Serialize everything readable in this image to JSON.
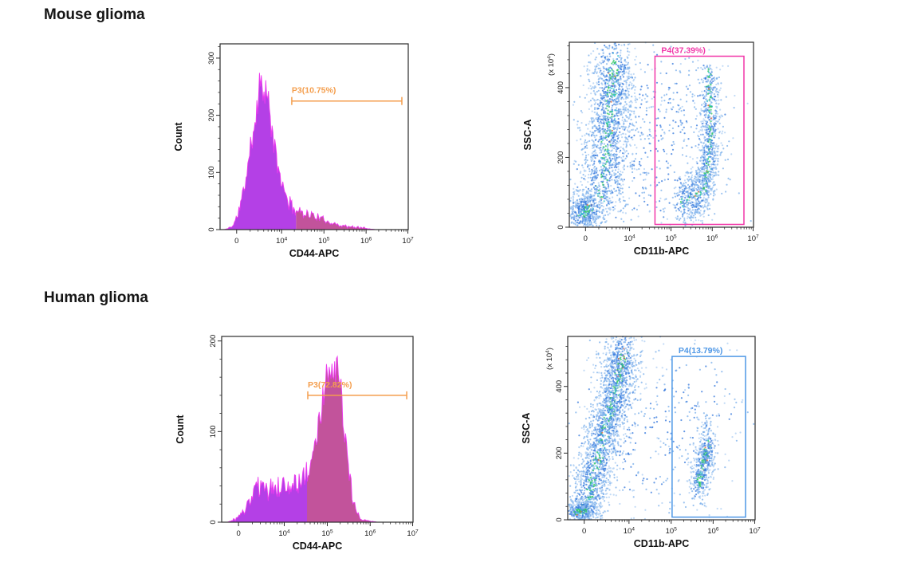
{
  "page": {
    "background": "#FFFFFF"
  },
  "sections": [
    {
      "title": "Mouse glioma"
    },
    {
      "title": "Human glioma"
    }
  ],
  "chart_data": [
    {
      "id": "mouse-cd44-histogram",
      "group": "Mouse glioma",
      "type": "area",
      "subtype": "flow-cytometry-histogram",
      "xlabel": "CD44-APC",
      "ylabel": "Count",
      "x_scale": "logicle",
      "xticks": [
        {
          "t": "0",
          "p": 0.088
        },
        {
          "t": "10",
          "e": "4",
          "p": 0.327
        },
        {
          "t": "10",
          "e": "5",
          "p": 0.552
        },
        {
          "t": "10",
          "e": "6",
          "p": 0.776
        },
        {
          "t": "10",
          "e": "7",
          "p": 0.998
        }
      ],
      "yaxis": {
        "max": 325,
        "majors": [
          0,
          100,
          200,
          300
        ],
        "minor_step": 20
      },
      "colors": {
        "fill": "#B440E6",
        "fill_gated": "#C2539B",
        "edge": "#EC3BEF"
      },
      "gate": {
        "name": "P3",
        "percent": 10.75,
        "label": "P3(10.75%)",
        "x_from": 0.381,
        "x_to": 0.966,
        "at_count": 225,
        "color": "#F49E4D"
      },
      "gate_split_x": 0.404,
      "profile": [
        [
          0.02,
          0
        ],
        [
          0.045,
          2
        ],
        [
          0.07,
          8
        ],
        [
          0.09,
          22
        ],
        [
          0.11,
          45
        ],
        [
          0.13,
          75
        ],
        [
          0.15,
          115
        ],
        [
          0.17,
          160
        ],
        [
          0.19,
          205
        ],
        [
          0.205,
          240
        ],
        [
          0.22,
          265
        ],
        [
          0.23,
          262
        ],
        [
          0.245,
          240
        ],
        [
          0.26,
          210
        ],
        [
          0.275,
          175
        ],
        [
          0.29,
          140
        ],
        [
          0.31,
          105
        ],
        [
          0.33,
          78
        ],
        [
          0.355,
          55
        ],
        [
          0.38,
          40
        ],
        [
          0.41,
          33
        ],
        [
          0.44,
          30
        ],
        [
          0.47,
          27
        ],
        [
          0.5,
          24
        ],
        [
          0.53,
          20
        ],
        [
          0.56,
          16
        ],
        [
          0.59,
          12
        ],
        [
          0.62,
          9
        ],
        [
          0.65,
          7
        ],
        [
          0.68,
          5
        ],
        [
          0.71,
          4
        ],
        [
          0.74,
          4
        ],
        [
          0.77,
          2
        ],
        [
          0.8,
          1
        ],
        [
          0.83,
          0
        ],
        [
          1.0,
          0
        ]
      ]
    },
    {
      "id": "mouse-cd11b-scatter",
      "group": "Mouse glioma",
      "type": "scatter",
      "subtype": "flow-cytometry-dotplot",
      "xlabel": "CD11b-APC",
      "ylabel": "SSC-A",
      "y_unit": {
        "t": "(x 10",
        "e": "4",
        "s": ")"
      },
      "x_scale": "logicle",
      "xticks": [
        {
          "t": "0",
          "p": 0.088
        },
        {
          "t": "10",
          "e": "4",
          "p": 0.327
        },
        {
          "t": "10",
          "e": "5",
          "p": 0.552
        },
        {
          "t": "10",
          "e": "6",
          "p": 0.776
        },
        {
          "t": "10",
          "e": "7",
          "p": 0.998
        }
      ],
      "yaxis": {
        "max": 530,
        "majors": [
          0,
          200,
          400
        ],
        "minor_step": 40
      },
      "gate": {
        "name": "P4",
        "percent": 37.39,
        "label": "P4(37.39%)",
        "x0": 0.465,
        "x1": 0.948,
        "y0": 8,
        "y1": 490,
        "color": "#F136A8"
      },
      "clusters": [
        {
          "path": [
            [
              0.16,
              70
            ],
            [
              0.19,
              170
            ],
            [
              0.21,
              260
            ],
            [
              0.225,
              340
            ],
            [
              0.235,
              420
            ],
            [
              0.24,
              480
            ]
          ],
          "sx": 0.065,
          "sy": 55,
          "n": 1500
        },
        {
          "path": [
            [
              0.06,
              35
            ],
            [
              0.11,
              55
            ]
          ],
          "sx": 0.05,
          "sy": 30,
          "n": 500
        },
        {
          "path": [
            [
              0.755,
              440
            ],
            [
              0.765,
              340
            ],
            [
              0.765,
              250
            ],
            [
              0.755,
              170
            ],
            [
              0.73,
              110
            ],
            [
              0.68,
              85
            ],
            [
              0.6,
              70
            ]
          ],
          "sx": 0.03,
          "sy": 38,
          "n": 1100
        },
        {
          "path": [
            [
              0.12,
              80
            ],
            [
              0.3,
              250
            ],
            [
              0.5,
              150
            ],
            [
              0.45,
              350
            ],
            [
              0.7,
              250
            ]
          ],
          "sx": 0.18,
          "sy": 140,
          "n": 600,
          "loose": true
        }
      ],
      "dot_colors": {
        "core": "#2FC961",
        "core2": "#33C3CE",
        "mid": "#3B7CDE",
        "outer": "#7FB2EC",
        "pale": "#AFD0F4",
        "rare": "#E0643C"
      }
    },
    {
      "id": "human-cd44-histogram",
      "group": "Human glioma",
      "type": "area",
      "subtype": "flow-cytometry-histogram",
      "xlabel": "CD44-APC",
      "ylabel": "Count",
      "x_scale": "logicle",
      "xticks": [
        {
          "t": "0",
          "p": 0.088
        },
        {
          "t": "10",
          "e": "4",
          "p": 0.327
        },
        {
          "t": "10",
          "e": "5",
          "p": 0.552
        },
        {
          "t": "10",
          "e": "6",
          "p": 0.776
        },
        {
          "t": "10",
          "e": "7",
          "p": 0.998
        }
      ],
      "yaxis": {
        "max": 205,
        "majors": [
          0,
          100,
          200
        ],
        "minor_step": 20
      },
      "colors": {
        "fill": "#B440E6",
        "fill_gated": "#C2539B",
        "edge": "#EC3BEF"
      },
      "gate": {
        "name": "P3",
        "percent": 72.82,
        "label": "P3(72.82%)",
        "x_from": 0.45,
        "x_to": 0.967,
        "at_count": 140,
        "color": "#F49E4D"
      },
      "gate_split_x": 0.446,
      "profile": [
        [
          0.03,
          0
        ],
        [
          0.06,
          2
        ],
        [
          0.09,
          6
        ],
        [
          0.12,
          12
        ],
        [
          0.14,
          20
        ],
        [
          0.16,
          28
        ],
        [
          0.18,
          36
        ],
        [
          0.2,
          40
        ],
        [
          0.215,
          34
        ],
        [
          0.23,
          38
        ],
        [
          0.245,
          32
        ],
        [
          0.26,
          38
        ],
        [
          0.275,
          34
        ],
        [
          0.29,
          40
        ],
        [
          0.305,
          35
        ],
        [
          0.32,
          41
        ],
        [
          0.335,
          36
        ],
        [
          0.35,
          42
        ],
        [
          0.365,
          38
        ],
        [
          0.38,
          41
        ],
        [
          0.4,
          44
        ],
        [
          0.42,
          47
        ],
        [
          0.44,
          52
        ],
        [
          0.46,
          62
        ],
        [
          0.48,
          78
        ],
        [
          0.5,
          98
        ],
        [
          0.52,
          125
        ],
        [
          0.54,
          148
        ],
        [
          0.555,
          162
        ],
        [
          0.57,
          172
        ],
        [
          0.585,
          174
        ],
        [
          0.6,
          168
        ],
        [
          0.615,
          152
        ],
        [
          0.63,
          128
        ],
        [
          0.645,
          98
        ],
        [
          0.66,
          66
        ],
        [
          0.675,
          40
        ],
        [
          0.69,
          20
        ],
        [
          0.705,
          10
        ],
        [
          0.72,
          5
        ],
        [
          0.75,
          2
        ],
        [
          0.78,
          1
        ],
        [
          0.82,
          0
        ],
        [
          1.0,
          0
        ]
      ]
    },
    {
      "id": "human-cd11b-scatter",
      "group": "Human glioma",
      "type": "scatter",
      "subtype": "flow-cytometry-dotplot",
      "xlabel": "CD11b-APC",
      "ylabel": "SSC-A",
      "y_unit": {
        "t": "(x 10",
        "e": "4",
        "s": ")"
      },
      "x_scale": "logicle",
      "xticks": [
        {
          "t": "0",
          "p": 0.088
        },
        {
          "t": "10",
          "e": "4",
          "p": 0.327
        },
        {
          "t": "10",
          "e": "5",
          "p": 0.552
        },
        {
          "t": "10",
          "e": "6",
          "p": 0.776
        },
        {
          "t": "10",
          "e": "7",
          "p": 0.998
        }
      ],
      "yaxis": {
        "max": 550,
        "majors": [
          0,
          200,
          400
        ],
        "minor_step": 40
      },
      "gate": {
        "name": "P4",
        "percent": 13.79,
        "label": "P4(13.79%)",
        "x0": 0.557,
        "x1": 0.949,
        "y0": 8,
        "y1": 490,
        "color": "#4E97E6"
      },
      "clusters": [
        {
          "path": [
            [
              0.09,
              35
            ],
            [
              0.13,
              110
            ],
            [
              0.17,
              200
            ],
            [
              0.21,
              290
            ],
            [
              0.25,
              380
            ],
            [
              0.28,
              450
            ],
            [
              0.3,
              500
            ]
          ],
          "sx": 0.05,
          "sy": 50,
          "n": 2100
        },
        {
          "path": [
            [
              0.05,
              22
            ],
            [
              0.1,
              30
            ]
          ],
          "sx": 0.045,
          "sy": 18,
          "n": 350
        },
        {
          "path": [
            [
              0.695,
              105
            ],
            [
              0.715,
              140
            ],
            [
              0.735,
              190
            ],
            [
              0.75,
              230
            ]
          ],
          "sx": 0.028,
          "sy": 40,
          "n": 520
        },
        {
          "path": [
            [
              0.2,
              300
            ],
            [
              0.4,
              200
            ],
            [
              0.6,
              300
            ],
            [
              0.75,
              380
            ]
          ],
          "sx": 0.16,
          "sy": 150,
          "n": 380,
          "loose": true
        }
      ],
      "dot_colors": {
        "core": "#2FC961",
        "core2": "#33C3CE",
        "mid": "#3B7CDE",
        "outer": "#7FB2EC",
        "pale": "#AFD0F4",
        "rare": "#E0643C"
      }
    }
  ]
}
